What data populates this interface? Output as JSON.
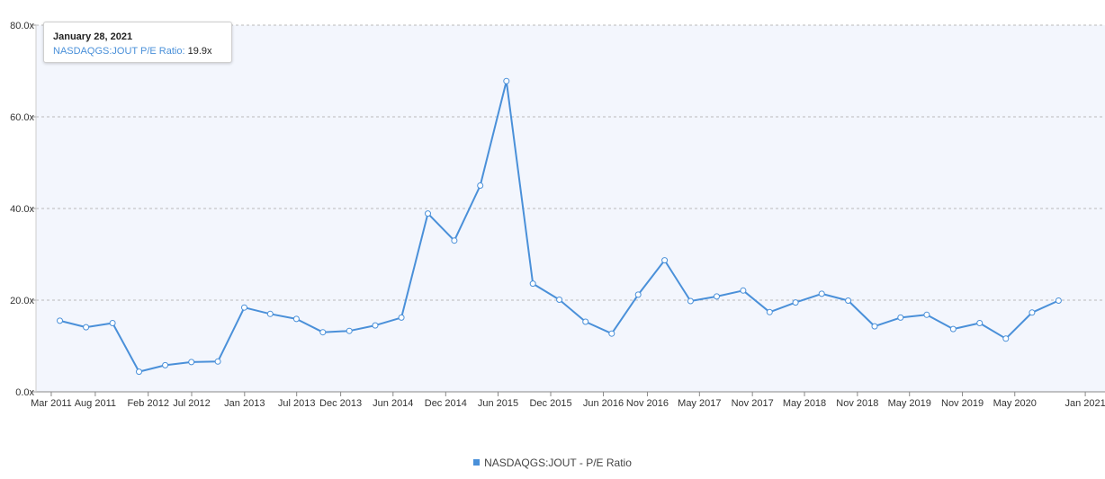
{
  "chart_data": {
    "type": "line",
    "series": [
      {
        "name": "NASDAQGS:JOUT - P/E Ratio",
        "color": "#4a90d9",
        "points": [
          [
            "2011-03-31",
            15.5
          ],
          [
            "2011-06-30",
            14.1
          ],
          [
            "2011-09-30",
            15.0
          ],
          [
            "2011-12-31",
            4.4
          ],
          [
            "2012-03-31",
            5.8
          ],
          [
            "2012-06-30",
            6.5
          ],
          [
            "2012-09-30",
            6.6
          ],
          [
            "2012-12-31",
            18.4
          ],
          [
            "2013-03-31",
            17.0
          ],
          [
            "2013-06-30",
            15.9
          ],
          [
            "2013-09-30",
            13.0
          ],
          [
            "2013-12-31",
            13.3
          ],
          [
            "2014-03-31",
            14.5
          ],
          [
            "2014-06-30",
            16.2
          ],
          [
            "2014-09-30",
            38.9
          ],
          [
            "2014-12-31",
            33.0
          ],
          [
            "2015-03-31",
            45.0
          ],
          [
            "2015-06-30",
            67.8
          ],
          [
            "2015-09-30",
            23.6
          ],
          [
            "2015-12-31",
            20.1
          ],
          [
            "2016-03-31",
            15.3
          ],
          [
            "2016-06-30",
            12.7
          ],
          [
            "2016-09-30",
            21.2
          ],
          [
            "2016-12-31",
            28.7
          ],
          [
            "2017-03-31",
            19.8
          ],
          [
            "2017-06-30",
            20.8
          ],
          [
            "2017-09-30",
            22.1
          ],
          [
            "2017-12-31",
            17.4
          ],
          [
            "2018-03-31",
            19.5
          ],
          [
            "2018-06-30",
            21.4
          ],
          [
            "2018-09-30",
            19.9
          ],
          [
            "2018-12-31",
            14.3
          ],
          [
            "2019-03-31",
            16.2
          ],
          [
            "2019-06-30",
            16.8
          ],
          [
            "2019-09-30",
            13.7
          ],
          [
            "2019-12-31",
            15.0
          ],
          [
            "2020-03-31",
            11.6
          ],
          [
            "2020-06-30",
            17.3
          ],
          [
            "2020-09-30",
            19.9
          ]
        ]
      }
    ],
    "x_ticks": [
      "Mar 2011",
      "Aug 2011",
      "Feb 2012",
      "Jul 2012",
      "Jan 2013",
      "Jul 2013",
      "Dec 2013",
      "Jun 2014",
      "Dec 2014",
      "Jun 2015",
      "Dec 2015",
      "Jun 2016",
      "Nov 2016",
      "May 2017",
      "Nov 2017",
      "May 2018",
      "Nov 2018",
      "May 2019",
      "Nov 2019",
      "May 2020",
      "Jan 2021"
    ],
    "x_tick_dates": [
      "2011-03-01",
      "2011-08-01",
      "2012-02-01",
      "2012-07-01",
      "2013-01-01",
      "2013-07-01",
      "2013-12-01",
      "2014-06-01",
      "2014-12-01",
      "2015-06-01",
      "2015-12-01",
      "2016-06-01",
      "2016-11-01",
      "2017-05-01",
      "2017-11-01",
      "2018-05-01",
      "2018-11-01",
      "2019-05-01",
      "2019-11-01",
      "2020-05-01",
      "2021-01-01"
    ],
    "x_range": [
      "2011-02-01",
      "2021-02-01"
    ],
    "y_ticks": [
      "0.0x",
      "20.0x",
      "40.0x",
      "60.0x",
      "80.0x"
    ],
    "y_tick_values": [
      0,
      20,
      40,
      60,
      80
    ],
    "ylim": [
      0,
      80
    ],
    "grid": true,
    "legend_position": "bottom-center",
    "tooltip": {
      "date": "January 28, 2021",
      "series_label": "NASDAQGS:JOUT P/E Ratio",
      "value": "19.9x"
    },
    "legend": {
      "label": "NASDAQGS:JOUT - P/E Ratio",
      "color": "#4a90d9"
    }
  }
}
